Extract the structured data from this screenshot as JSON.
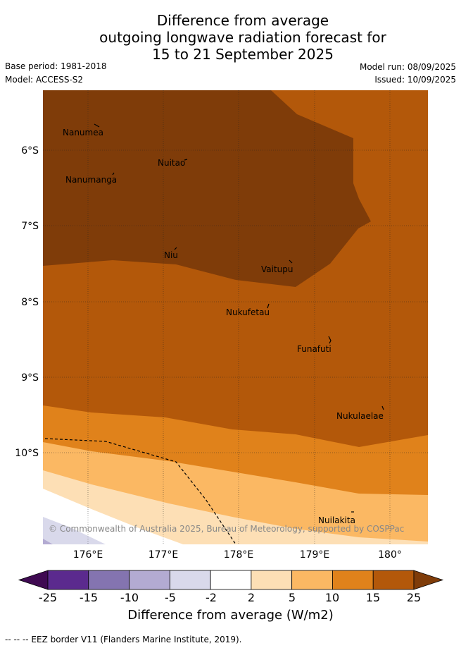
{
  "title": {
    "line1": "Difference from average",
    "line2": "outgoing longwave radiation forecast for",
    "line3": "15 to 21 September 2025"
  },
  "meta": {
    "base_period": "Base period: 1981-2018",
    "model": "Model: ACCESS-S2",
    "model_run": "Model run: 08/09/2025",
    "issued": "Issued: 10/09/2025"
  },
  "map": {
    "lat_labels": [
      "6°S",
      "7°S",
      "8°S",
      "9°S",
      "10°S"
    ],
    "lon_labels": [
      "176°E",
      "177°E",
      "178°E",
      "179°E",
      "180°"
    ],
    "places": [
      {
        "name": "Nanumea"
      },
      {
        "name": "Nuitao"
      },
      {
        "name": "Nanumanga"
      },
      {
        "name": "Niu"
      },
      {
        "name": "Vaitupu"
      },
      {
        "name": "Nukufetau"
      },
      {
        "name": "Funafuti"
      },
      {
        "name": "Nukulaelae"
      },
      {
        "name": "Nuilakita"
      }
    ],
    "copyright": "© Commonwealth of Australia 2025, Bureau of Meteorology, supported by COSPPac"
  },
  "colorbar": {
    "ticks": [
      "-25",
      "-15",
      "-10",
      "-5",
      "-2",
      "2",
      "5",
      "10",
      "15",
      "25"
    ],
    "colors": [
      "#3f0a52",
      "#5b2a8e",
      "#8474b0",
      "#b3abd2",
      "#d9d9eb",
      "#ffffff",
      "#fddfb5",
      "#fbb863",
      "#e0821b",
      "#b3580a",
      "#7f3c09"
    ],
    "title": "Difference from average (W/m2)"
  },
  "footer": "-- -- -- EEZ border V11 (Flanders Marine Institute, 2019)."
}
